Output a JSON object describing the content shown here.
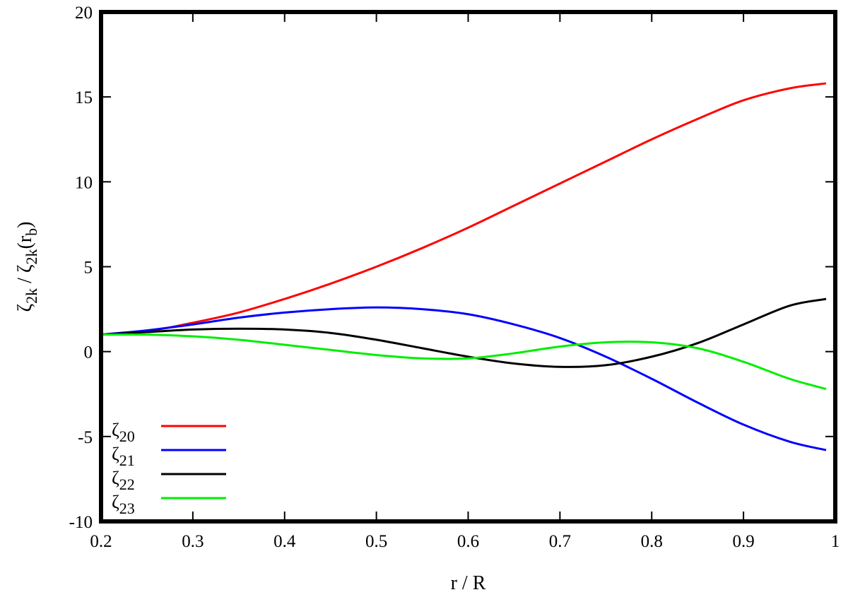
{
  "chart_data": {
    "type": "line",
    "xlabel": "r / R",
    "ylabel": {
      "parts": [
        {
          "text": "ζ",
          "shift": "base"
        },
        {
          "text": "2k",
          "shift": "sub"
        },
        {
          "text": " / ζ",
          "shift": "base"
        },
        {
          "text": "2k",
          "shift": "sub"
        },
        {
          "text": "(r",
          "shift": "base"
        },
        {
          "text": "b",
          "shift": "sub"
        },
        {
          "text": ")",
          "shift": "base"
        }
      ]
    },
    "xlim": [
      0.2,
      1.0
    ],
    "ylim": [
      -10,
      20
    ],
    "xticks": [
      0.2,
      0.3,
      0.4,
      0.5,
      0.6,
      0.7,
      0.8,
      0.9,
      1.0
    ],
    "xtick_labels": [
      "0.2",
      "0.3",
      "0.4",
      "0.5",
      "0.6",
      "0.7",
      "0.8",
      "0.9",
      "1"
    ],
    "yticks": [
      -10,
      -5,
      0,
      5,
      10,
      15,
      20
    ],
    "ytick_labels": [
      "-10",
      "-5",
      "0",
      "5",
      "10",
      "15",
      "20"
    ],
    "grid": false,
    "legend_position": "bottom-left",
    "series": [
      {
        "name": "ζ20",
        "name_base": "ζ",
        "name_sub": "20",
        "color": "#ff0000",
        "x": [
          0.2,
          0.25,
          0.3,
          0.35,
          0.4,
          0.45,
          0.5,
          0.55,
          0.6,
          0.65,
          0.7,
          0.75,
          0.8,
          0.85,
          0.9,
          0.95,
          0.99
        ],
        "y": [
          1.0,
          1.2,
          1.7,
          2.3,
          3.1,
          4.0,
          5.0,
          6.1,
          7.3,
          8.6,
          9.9,
          11.2,
          12.5,
          13.7,
          14.8,
          15.5,
          15.8
        ]
      },
      {
        "name": "ζ21",
        "name_base": "ζ",
        "name_sub": "21",
        "color": "#0000ff",
        "x": [
          0.2,
          0.25,
          0.3,
          0.35,
          0.4,
          0.45,
          0.5,
          0.55,
          0.6,
          0.65,
          0.7,
          0.75,
          0.8,
          0.85,
          0.9,
          0.95,
          0.99
        ],
        "y": [
          1.0,
          1.25,
          1.6,
          2.0,
          2.3,
          2.5,
          2.6,
          2.5,
          2.2,
          1.6,
          0.8,
          -0.3,
          -1.6,
          -3.0,
          -4.3,
          -5.3,
          -5.8
        ]
      },
      {
        "name": "ζ22",
        "name_base": "ζ",
        "name_sub": "22",
        "color": "#000000",
        "x": [
          0.2,
          0.25,
          0.3,
          0.35,
          0.4,
          0.45,
          0.5,
          0.55,
          0.6,
          0.65,
          0.7,
          0.75,
          0.8,
          0.85,
          0.9,
          0.95,
          0.99
        ],
        "y": [
          1.0,
          1.15,
          1.3,
          1.35,
          1.3,
          1.1,
          0.7,
          0.2,
          -0.3,
          -0.7,
          -0.9,
          -0.8,
          -0.3,
          0.5,
          1.6,
          2.7,
          3.1
        ]
      },
      {
        "name": "ζ23",
        "name_base": "ζ",
        "name_sub": "23",
        "color": "#00ee00",
        "x": [
          0.2,
          0.25,
          0.3,
          0.35,
          0.4,
          0.45,
          0.5,
          0.55,
          0.6,
          0.65,
          0.7,
          0.75,
          0.8,
          0.85,
          0.9,
          0.95,
          0.99
        ],
        "y": [
          1.0,
          1.0,
          0.9,
          0.7,
          0.4,
          0.1,
          -0.2,
          -0.4,
          -0.4,
          -0.1,
          0.3,
          0.55,
          0.55,
          0.2,
          -0.6,
          -1.6,
          -2.2
        ]
      }
    ]
  }
}
